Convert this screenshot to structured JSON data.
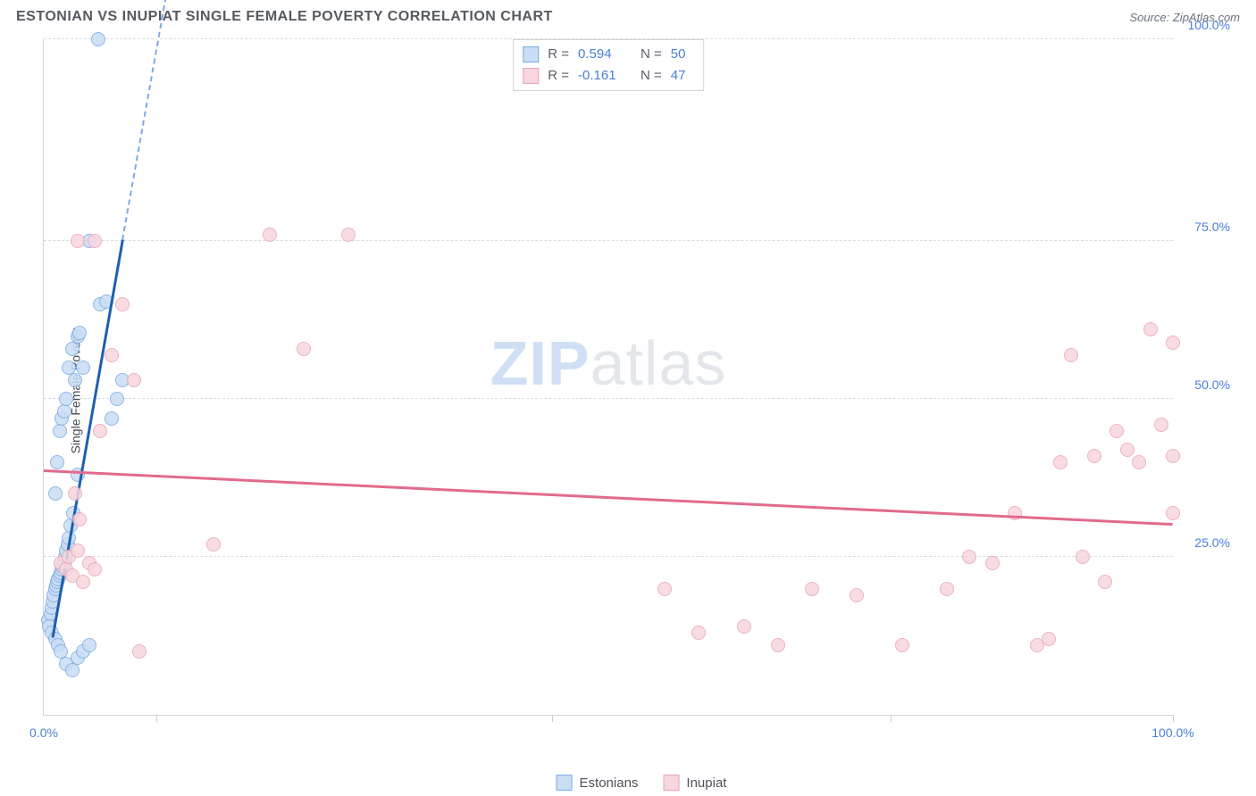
{
  "header": {
    "title": "ESTONIAN VS INUPIAT SINGLE FEMALE POVERTY CORRELATION CHART",
    "source": "Source: ZipAtlas.com"
  },
  "watermark": {
    "left": "ZIP",
    "right": "atlas"
  },
  "chart": {
    "type": "scatter",
    "background_color": "#ffffff",
    "grid_color": "#d8dde2",
    "axis_color": "#d0d4d9",
    "tick_color": "#c9cdd2",
    "label_color": "#4a7fd6",
    "y_axis_title": "Single Female Poverty",
    "y_axis_title_color": "#454a52",
    "xlim": [
      0,
      100
    ],
    "ylim": [
      0,
      107
    ],
    "y_gridlines": [
      25,
      50,
      75,
      107
    ],
    "y_tick_labels": [
      "25.0%",
      "50.0%",
      "75.0%",
      "100.0%"
    ],
    "x_ticks": [
      10,
      45,
      75,
      100
    ],
    "x_tick_labels": {
      "0": "0.0%",
      "100": "100.0%"
    },
    "marker_radius": 8,
    "marker_opacity": 0.85,
    "series": [
      {
        "name": "Estonians",
        "fill": "#c9ddf5",
        "stroke": "#7eaae2",
        "points": [
          [
            0.4,
            15
          ],
          [
            0.6,
            16
          ],
          [
            0.7,
            17
          ],
          [
            0.8,
            18
          ],
          [
            0.9,
            19
          ],
          [
            1.0,
            20
          ],
          [
            1.1,
            20.5
          ],
          [
            1.2,
            21
          ],
          [
            1.3,
            21.5
          ],
          [
            1.4,
            22
          ],
          [
            1.5,
            22.5
          ],
          [
            1.6,
            23
          ],
          [
            1.7,
            23.5
          ],
          [
            1.8,
            24
          ],
          [
            1.9,
            25
          ],
          [
            2.0,
            26
          ],
          [
            2.1,
            27
          ],
          [
            2.2,
            28
          ],
          [
            2.4,
            30
          ],
          [
            2.6,
            32
          ],
          [
            0.5,
            14
          ],
          [
            0.7,
            13
          ],
          [
            1.0,
            12
          ],
          [
            1.3,
            11
          ],
          [
            1.5,
            10
          ],
          [
            2.0,
            8
          ],
          [
            2.5,
            7
          ],
          [
            3.0,
            9
          ],
          [
            3.5,
            10
          ],
          [
            4.0,
            11
          ],
          [
            1.0,
            35
          ],
          [
            1.2,
            40
          ],
          [
            1.4,
            45
          ],
          [
            1.6,
            47
          ],
          [
            1.8,
            48
          ],
          [
            2.0,
            50
          ],
          [
            2.2,
            55
          ],
          [
            2.5,
            58
          ],
          [
            2.8,
            53
          ],
          [
            3.0,
            60
          ],
          [
            3.2,
            60.5
          ],
          [
            3.5,
            55
          ],
          [
            4.0,
            75
          ],
          [
            5.0,
            65
          ],
          [
            5.5,
            65.5
          ],
          [
            6.0,
            47
          ],
          [
            6.5,
            50
          ],
          [
            7.0,
            53
          ],
          [
            3.0,
            38
          ],
          [
            4.8,
            107
          ]
        ],
        "trend": {
          "color": "#1f5fb0",
          "dash_color": "#7eaae2",
          "width": 3,
          "x0": 0.8,
          "y0": 12,
          "x1": 7.0,
          "y1": 75,
          "dash_x2": 11.0,
          "dash_y2": 115
        },
        "stats": {
          "R": "0.594",
          "N": "50"
        }
      },
      {
        "name": "Inupiat",
        "fill": "#f7d6de",
        "stroke": "#eba5b7",
        "points": [
          [
            1.5,
            24
          ],
          [
            2.0,
            23
          ],
          [
            2.2,
            25
          ],
          [
            2.5,
            22
          ],
          [
            3.0,
            26
          ],
          [
            3.5,
            21
          ],
          [
            4.0,
            24
          ],
          [
            4.5,
            23
          ],
          [
            2.8,
            35
          ],
          [
            3.2,
            31
          ],
          [
            5.0,
            45
          ],
          [
            6.0,
            57
          ],
          [
            7.0,
            65
          ],
          [
            8.0,
            53
          ],
          [
            4.5,
            75
          ],
          [
            3.0,
            75
          ],
          [
            15.0,
            27
          ],
          [
            20.0,
            76
          ],
          [
            27.0,
            76
          ],
          [
            23.0,
            58
          ],
          [
            55.0,
            20
          ],
          [
            58.0,
            13
          ],
          [
            62.0,
            14
          ],
          [
            68.0,
            20
          ],
          [
            72.0,
            19
          ],
          [
            76.0,
            11
          ],
          [
            80.0,
            20
          ],
          [
            82.0,
            25
          ],
          [
            84.0,
            24
          ],
          [
            86.0,
            32
          ],
          [
            88.0,
            11
          ],
          [
            90.0,
            40
          ],
          [
            91.0,
            57
          ],
          [
            92.0,
            25
          ],
          [
            93.0,
            41
          ],
          [
            94.0,
            21
          ],
          [
            95.0,
            45
          ],
          [
            96.0,
            42
          ],
          [
            97.0,
            40
          ],
          [
            98.0,
            61
          ],
          [
            99.0,
            46
          ],
          [
            100.0,
            41
          ],
          [
            100.0,
            32
          ],
          [
            100.0,
            59
          ],
          [
            89.0,
            12
          ],
          [
            65.0,
            11
          ],
          [
            8.5,
            10
          ]
        ],
        "trend": {
          "color": "#e26a8b",
          "width": 3,
          "x0": 0,
          "y0": 38.5,
          "x1": 100,
          "y1": 30
        },
        "stats": {
          "R": "-0.161",
          "N": "47"
        }
      }
    ],
    "legend": {
      "title_fontsize": 16,
      "label_fontsize": 15,
      "stats_label_R": "R =",
      "stats_label_N": "N ="
    }
  }
}
